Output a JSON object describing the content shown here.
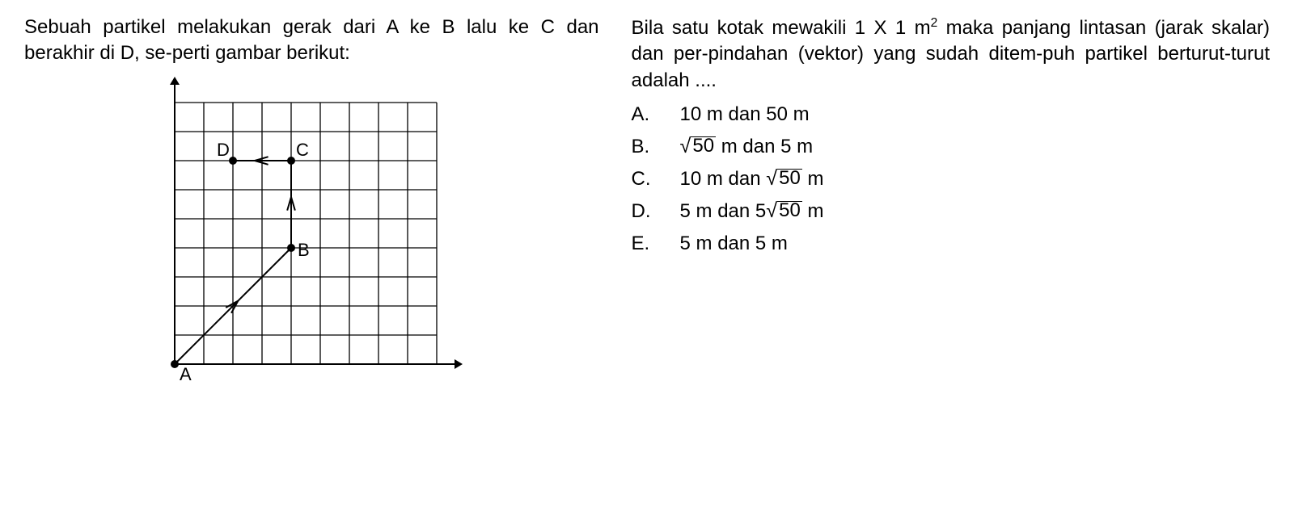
{
  "left": {
    "paragraph_html": "Sebuah partikel melakukan gerak dari A ke B lalu ke C dan berakhir di D, se-perti gambar berikut:"
  },
  "right": {
    "paragraph_html": "Bila satu kotak mewakili 1 X 1 m<sup>2</sup> maka panjang lintasan (jarak skalar) dan per-pindahan (vektor) yang sudah ditem-puh partikel berturut-turut adalah ....",
    "choices": [
      {
        "letter": "A.",
        "html": "10 m  dan  50 m"
      },
      {
        "letter": "B.",
        "html": "<span class='sqrt-wrap'><span class='radical'>√</span><span class='radicand'>50</span></span> m dan 5 m"
      },
      {
        "letter": "C.",
        "html": "10 m dan <span class='sqrt-wrap'><span class='radical'>√</span><span class='radicand'>50</span></span> m"
      },
      {
        "letter": "D.",
        "html": "5 m dan 5<span class='sqrt-wrap'><span class='radical'>√</span><span class='radicand'>50</span></span>  m"
      },
      {
        "letter": "E.",
        "html": "5 m dan 5 m"
      }
    ]
  },
  "diagram": {
    "grid": {
      "cols": 9,
      "rows": 9,
      "cell": 36
    },
    "colors": {
      "stroke": "#000000",
      "grid": "#000000",
      "bg": "#ffffff"
    },
    "stroke_width": 2,
    "grid_width": 1.3,
    "axis_arrow": 10,
    "points": {
      "A": {
        "gx": 0,
        "gy": 0,
        "label_dx": 6,
        "label_dy": 20
      },
      "B": {
        "gx": 4,
        "gy": 4,
        "label_dx": 8,
        "label_dy": 10
      },
      "C": {
        "gx": 4,
        "gy": 7,
        "label_dx": 6,
        "label_dy": -6
      },
      "D": {
        "gx": 2,
        "gy": 7,
        "label_dx": -20,
        "label_dy": -6
      }
    },
    "segments": [
      {
        "from": "A",
        "to": "B",
        "mid_arrow": true
      },
      {
        "from": "B",
        "to": "C",
        "mid_arrow": true
      },
      {
        "from": "C",
        "to": "D",
        "mid_arrow": true
      }
    ],
    "dot_radius": 5,
    "label_fontsize": 22
  }
}
